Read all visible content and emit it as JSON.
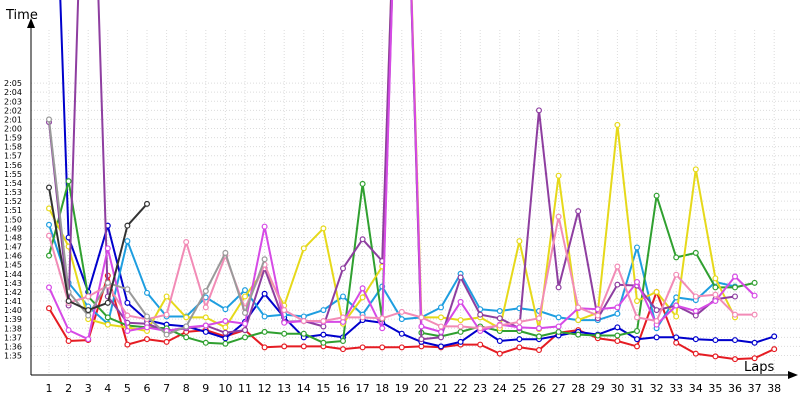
{
  "chart_data": {
    "type": "line",
    "xlabel": "Laps",
    "ylabel": "Time",
    "x": [
      1,
      2,
      3,
      4,
      5,
      6,
      7,
      8,
      9,
      10,
      11,
      12,
      13,
      14,
      15,
      16,
      17,
      18,
      19,
      20,
      21,
      22,
      23,
      24,
      25,
      26,
      27,
      28,
      29,
      30,
      31,
      32,
      33,
      34,
      35,
      36,
      37,
      38
    ],
    "ylim_seconds": [
      94,
      127
    ],
    "y_ticks": [
      "1:35",
      "1:36",
      "1:37",
      "1:38",
      "1:39",
      "1:40",
      "1:41",
      "1:42",
      "1:43",
      "1:44",
      "1:45",
      "1:46",
      "1:47",
      "1:48",
      "1:49",
      "1:50",
      "1:51",
      "1:52",
      "1:53",
      "1:54",
      "1:55",
      "1:56",
      "1:57",
      "1:58",
      "1:59",
      "2:00",
      "2:01",
      "2:02",
      "2:03",
      "2:04",
      "2:05"
    ],
    "grid": true,
    "series": [
      {
        "color": "#e51c23",
        "values": [
          100.2,
          96.6,
          96.7,
          103.8,
          96.2,
          96.8,
          96.5,
          97.6,
          97.8,
          97.1,
          97.8,
          95.9,
          96.0,
          96.0,
          96.0,
          95.7,
          95.9,
          95.9,
          95.9,
          96.0,
          95.9,
          96.2,
          96.2,
          95.2,
          95.9,
          95.6,
          97.5,
          97.8,
          96.9,
          96.6,
          96.0,
          102.0,
          96.4,
          95.2,
          94.9,
          94.6,
          94.7,
          95.7
        ]
      },
      {
        "color": "#0000cc",
        "values": [
          170,
          108.0,
          102.0,
          109.3,
          100.8,
          98.9,
          98.4,
          98.2,
          97.6,
          96.9,
          98.7,
          101.8,
          99.2,
          97.0,
          97.3,
          97.0,
          98.9,
          98.6,
          97.4,
          96.5,
          96.0,
          96.5,
          98.0,
          96.6,
          96.8,
          96.8,
          97.2,
          97.6,
          97.3,
          98.1,
          96.8,
          97.0,
          97.0,
          96.8,
          96.7,
          96.7,
          96.4,
          97.1
        ]
      },
      {
        "color": "#1e9ee0",
        "values": [
          109.4,
          103.0,
          100.4,
          98.5,
          107.6,
          101.9,
          99.3,
          99.3,
          101.4,
          100.1,
          102.2,
          99.3,
          99.5,
          99.3,
          100.0,
          101.5,
          99.5,
          102.6,
          99.0,
          99.2,
          100.3,
          104.0,
          100.1,
          99.9,
          100.2,
          99.9,
          99.2,
          98.9,
          98.9,
          99.6,
          106.9,
          98.0,
          101.4,
          101.1,
          103.1,
          102.6,
          null,
          null
        ]
      },
      {
        "color": "#30a030",
        "values": [
          106.0,
          114.2,
          101.5,
          99.2,
          98.3,
          98.1,
          98.0,
          97.0,
          96.4,
          96.3,
          97.0,
          97.6,
          97.4,
          97.4,
          96.4,
          96.6,
          113.9,
          99.0,
          170,
          97.5,
          97.1,
          97.6,
          98.2,
          97.7,
          97.7,
          97.1,
          97.6,
          97.3,
          97.2,
          97.2,
          97.7,
          112.6,
          105.8,
          106.3,
          102.5,
          102.5,
          103.0,
          null
        ]
      },
      {
        "color": "#e6d91a",
        "values": [
          111.2,
          107.0,
          99.0,
          98.4,
          98.1,
          97.7,
          101.5,
          99.2,
          99.2,
          98.1,
          101.5,
          104.5,
          100.5,
          106.8,
          109.0,
          98.5,
          101.4,
          104.8,
          170,
          99.2,
          99.2,
          98.9,
          99.2,
          98.0,
          107.6,
          97.9,
          114.8,
          98.9,
          99.7,
          120.4,
          101.0,
          102.0,
          99.3,
          115.5,
          103.5,
          99.2,
          null,
          null
        ]
      },
      {
        "color": "#8e3ea0",
        "values": [
          120.7,
          100.5,
          170,
          101.5,
          98.6,
          98.5,
          97.7,
          98.0,
          98.3,
          97.5,
          97.8,
          104.6,
          98.7,
          98.8,
          98.2,
          104.6,
          107.8,
          105.4,
          170,
          96.8,
          97.0,
          103.6,
          99.5,
          99.1,
          98.0,
          122.0,
          102.5,
          110.9,
          99.1,
          102.8,
          102.7,
          100.0,
          100.5,
          99.4,
          101.2,
          101.5,
          null,
          null
        ]
      },
      {
        "color": "#d64ae6",
        "values": [
          102.5,
          97.8,
          96.8,
          106.8,
          97.7,
          98.1,
          97.7,
          98.1,
          98.3,
          98.8,
          98.5,
          109.2,
          98.6,
          98.8,
          98.7,
          98.7,
          102.4,
          98.0,
          170,
          98.2,
          97.6,
          100.9,
          97.7,
          98.4,
          98.1,
          98.0,
          98.2,
          100.2,
          100.1,
          100.3,
          103.1,
          98.4,
          100.5,
          99.9,
          101.0,
          103.7,
          101.6,
          null
        ]
      },
      {
        "color": "#f28bb6",
        "values": [
          108.2,
          100.8,
          101.5,
          102.7,
          99.4,
          99.0,
          99.5,
          107.5,
          100.3,
          106.0,
          100.2,
          105.0,
          100.0,
          98.8,
          98.8,
          99.2,
          99.2,
          99.1,
          99.8,
          99.2,
          98.2,
          98.2,
          98.0,
          98.3,
          98.7,
          99.1,
          110.3,
          100.3,
          99.4,
          104.8,
          99.2,
          98.8,
          103.9,
          101.5,
          101.7,
          99.5,
          99.5,
          null
        ]
      },
      {
        "color": "#9a9a9a",
        "values": [
          121.0,
          102.0,
          99.4,
          103.0,
          102.3,
          99.3,
          97.3,
          98.2,
          102.1,
          106.3,
          99.7,
          105.6,
          null,
          null,
          null,
          null,
          null,
          null,
          null,
          null,
          null,
          null,
          null,
          null,
          null,
          null,
          null,
          null,
          null,
          null,
          null,
          null,
          null,
          null,
          null,
          null,
          null,
          null
        ]
      },
      {
        "color": "#333333",
        "values": [
          113.5,
          101.0,
          100.0,
          100.8,
          109.3,
          111.7,
          null,
          null,
          null,
          null,
          null,
          null,
          null,
          null,
          null,
          null,
          null,
          null,
          null,
          null,
          null,
          null,
          null,
          null,
          null,
          null,
          null,
          null,
          null,
          null,
          null,
          null,
          null,
          null,
          null,
          null,
          null,
          null
        ]
      }
    ]
  }
}
